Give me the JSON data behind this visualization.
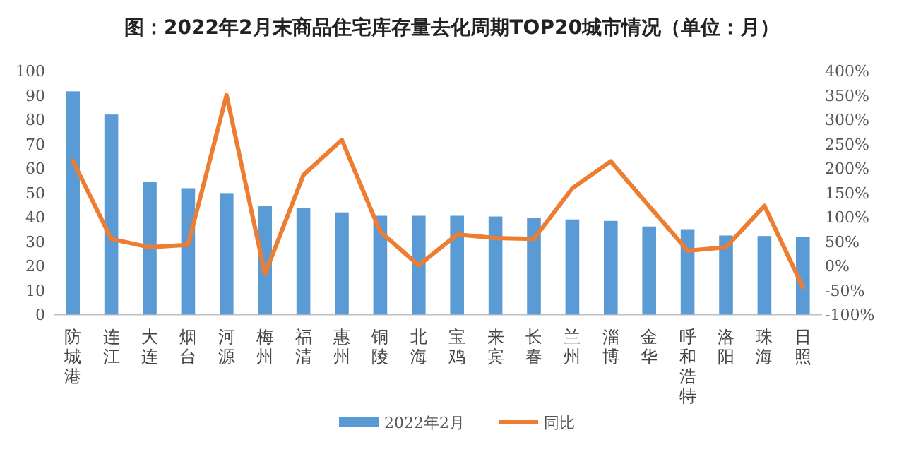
{
  "chart_data": {
    "type": "bar",
    "title": "图：2022年2月末商品住宅库存量去化周期TOP20城市情况（单位：月）",
    "categories": [
      "防城港",
      "连江",
      "大连",
      "烟台",
      "河源",
      "梅州",
      "福清",
      "惠州",
      "铜陵",
      "北海",
      "宝鸡",
      "来宾",
      "长春",
      "兰州",
      "淄博",
      "金华",
      "呼和浩特",
      "洛阳",
      "珠海",
      "日照"
    ],
    "series": [
      {
        "name": "2022年2月",
        "color": "#5b9bd5",
        "values": [
          91.5,
          82,
          54.3,
          51.8,
          49.8,
          44.4,
          43.8,
          41.9,
          40.5,
          40.5,
          40.5,
          40.2,
          39.6,
          39,
          38.4,
          36.1,
          35,
          32.4,
          32.2,
          31.8
        ]
      },
      {
        "name": "同比",
        "type": "line",
        "axis": "y2",
        "color": "#ed7d31",
        "values": [
          215,
          55,
          38,
          43,
          350,
          -17,
          186,
          258,
          70,
          1,
          64,
          57,
          55,
          159,
          214,
          122,
          31,
          38,
          123,
          -44
        ]
      }
    ],
    "ylim": [
      0,
      100
    ],
    "yticks": [
      0,
      10,
      20,
      30,
      40,
      50,
      60,
      70,
      80,
      90,
      100
    ],
    "y2lim": [
      -100,
      400
    ],
    "y2ticks": [
      {
        "value": -100,
        "label": "-100%"
      },
      {
        "value": -50,
        "label": "-50%"
      },
      {
        "value": 0,
        "label": "0%"
      },
      {
        "value": 50,
        "label": "50%"
      },
      {
        "value": 100,
        "label": "100%"
      },
      {
        "value": 150,
        "label": "150%"
      },
      {
        "value": 200,
        "label": "200%"
      },
      {
        "value": 250,
        "label": "250%"
      },
      {
        "value": 300,
        "label": "300%"
      },
      {
        "value": 350,
        "label": "350%"
      },
      {
        "value": 400,
        "label": "400%"
      }
    ],
    "legend": "bottom"
  }
}
